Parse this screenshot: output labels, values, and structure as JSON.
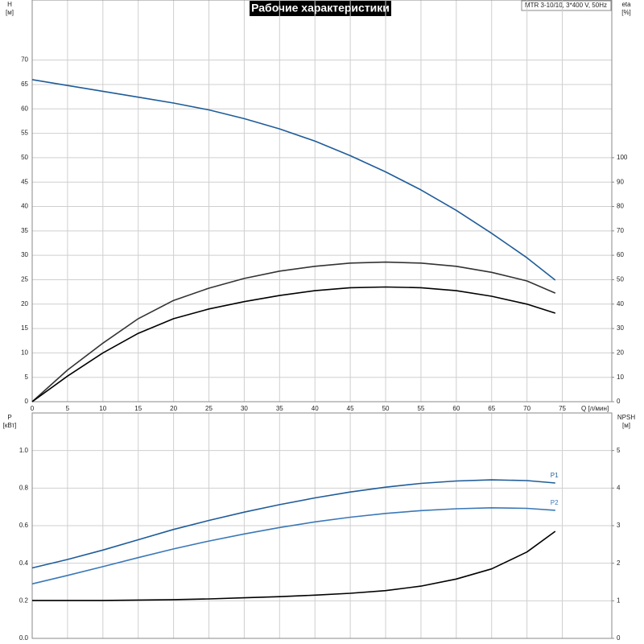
{
  "chart_data": [
    {
      "type": "line",
      "title": "Рабочие характеристики",
      "note": "MTR 3-10/10, 3*400 V, 50Hz",
      "xlabel": "Q [л/мин]",
      "ylabel": "H",
      "yunit": "[м]",
      "y2label": "eta",
      "y2unit": "[%]",
      "xlim": [
        0,
        82
      ],
      "xticks": [
        0,
        5,
        10,
        15,
        20,
        25,
        30,
        35,
        40,
        45,
        50,
        55,
        60,
        65,
        70,
        75
      ],
      "ylim": [
        0,
        80
      ],
      "yticks": [
        0,
        5,
        10,
        15,
        20,
        25,
        30,
        35,
        40,
        45,
        50,
        55,
        60,
        65,
        70
      ],
      "y2lim": [
        0,
        160
      ],
      "y2ticks": [
        0,
        10,
        20,
        30,
        40,
        50,
        60,
        70,
        80,
        90,
        100
      ],
      "grid": true,
      "x": [
        0,
        5,
        10,
        15,
        20,
        25,
        30,
        35,
        40,
        45,
        50,
        55,
        60,
        65,
        70,
        74
      ],
      "series": [
        {
          "color": "#1f5c99",
          "values": [
            66,
            64.8,
            63.6,
            62.4,
            61.2,
            59.8,
            58,
            55.9,
            53.4,
            50.4,
            47.1,
            43.4,
            39.2,
            34.5,
            29.5,
            24.9
          ]
        },
        {
          "color": "#333333",
          "axis": "y2",
          "values": [
            0,
            13,
            24,
            34,
            41.5,
            46.5,
            50.5,
            53.5,
            55.5,
            56.8,
            57.2,
            56.8,
            55.5,
            53,
            49.5,
            44.5
          ]
        },
        {
          "color": "#000000",
          "axis": "y2",
          "values": [
            0,
            10.5,
            20,
            28,
            34,
            38,
            41,
            43.5,
            45.5,
            46.7,
            47,
            46.7,
            45.5,
            43.2,
            40,
            36.3
          ]
        }
      ]
    },
    {
      "type": "line",
      "ylabel": "P",
      "yunit": "[кВт]",
      "y2label": "NPSH",
      "y2unit": "[м]",
      "xlim": [
        0,
        82
      ],
      "xticks": [
        0,
        5,
        10,
        15,
        20,
        25,
        30,
        35,
        40,
        45,
        50,
        55,
        60,
        65,
        70,
        75
      ],
      "ylim": [
        0,
        1.2
      ],
      "yticks": [
        {
          "value": 0,
          "label": "0.0"
        },
        0.2,
        0.4,
        0.6,
        0.8,
        {
          "value": 1,
          "label": "1.0"
        }
      ],
      "y2lim": [
        0,
        6
      ],
      "y2ticks": [
        0,
        1,
        2,
        3,
        4,
        5
      ],
      "grid": true,
      "x": [
        0,
        5,
        10,
        15,
        20,
        25,
        30,
        35,
        40,
        45,
        50,
        55,
        60,
        65,
        70,
        74
      ],
      "series": [
        {
          "name": "P1",
          "color": "#1f5c99",
          "values": [
            0.375,
            0.42,
            0.47,
            0.525,
            0.58,
            0.628,
            0.672,
            0.712,
            0.748,
            0.779,
            0.805,
            0.825,
            0.838,
            0.844,
            0.84,
            0.827
          ]
        },
        {
          "name": "P2",
          "color": "#3a78b8",
          "values": [
            0.29,
            0.335,
            0.382,
            0.43,
            0.476,
            0.518,
            0.556,
            0.59,
            0.62,
            0.645,
            0.665,
            0.68,
            0.69,
            0.695,
            0.692,
            0.682
          ]
        },
        {
          "color": "#000000",
          "axis": "y2",
          "values": [
            1.01,
            1.01,
            1.01,
            1.02,
            1.03,
            1.05,
            1.08,
            1.11,
            1.15,
            1.2,
            1.27,
            1.39,
            1.58,
            1.85,
            2.3,
            2.85
          ]
        }
      ]
    }
  ]
}
